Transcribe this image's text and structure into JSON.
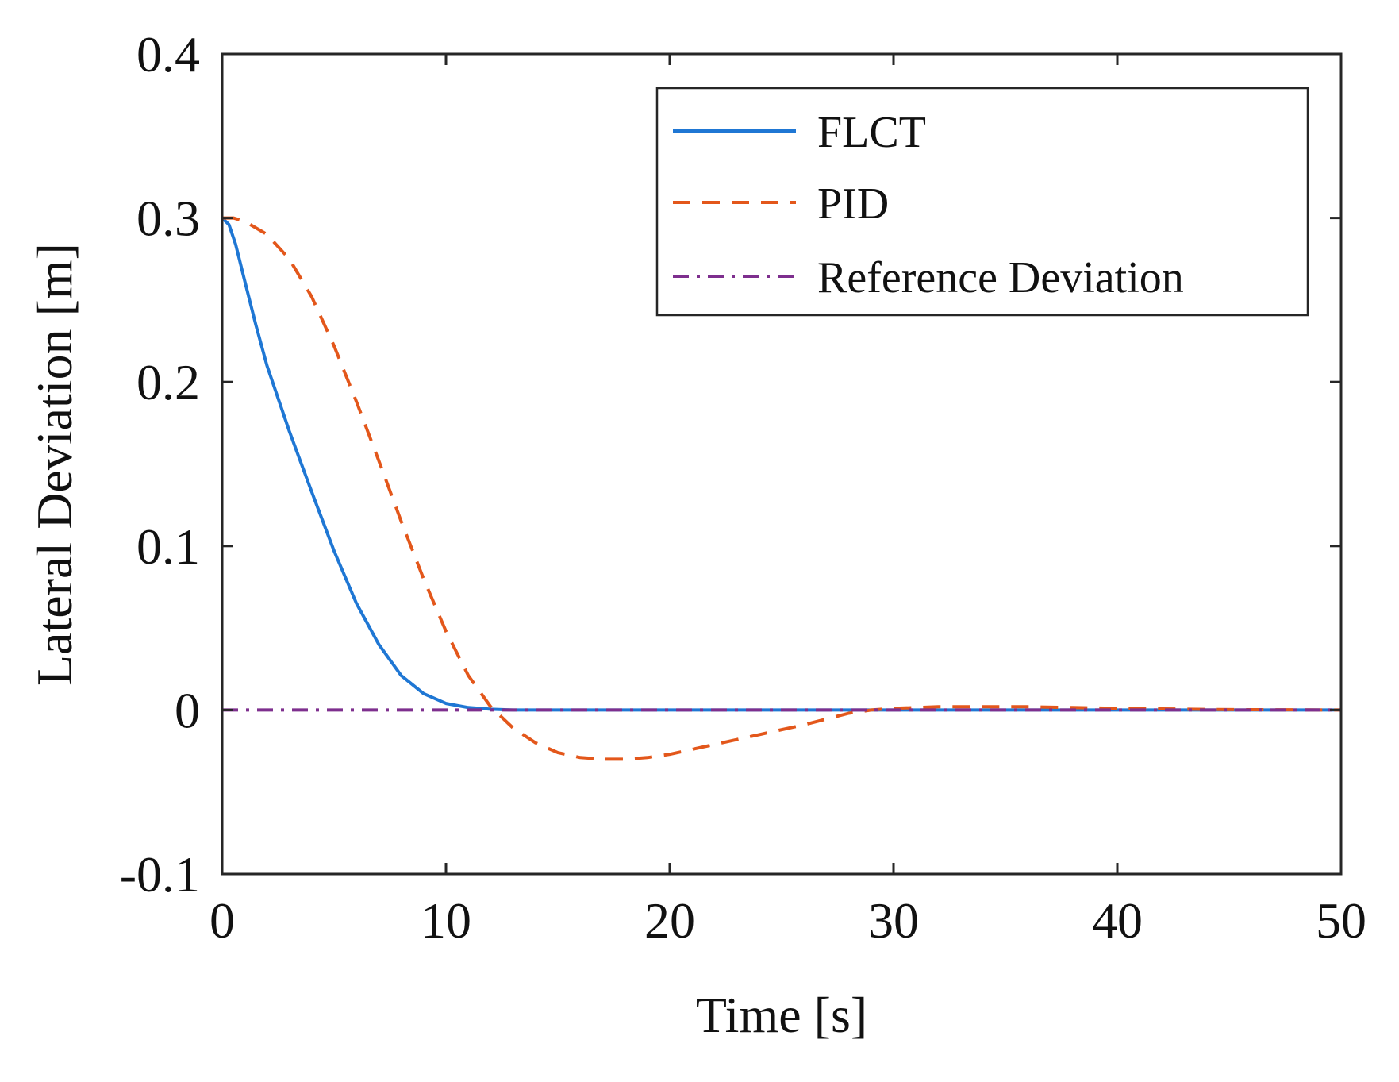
{
  "chart_data": {
    "type": "line",
    "title": "",
    "xlabel": "Time [s]",
    "ylabel": "Lateral Deviation [m]",
    "xlim": [
      0,
      50
    ],
    "ylim": [
      -0.1,
      0.4
    ],
    "xticks": [
      0,
      10,
      20,
      30,
      40,
      50
    ],
    "xtick_labels": [
      "0",
      "10",
      "20",
      "30",
      "40",
      "50"
    ],
    "yticks": [
      -0.1,
      0,
      0.1,
      0.2,
      0.3,
      0.4
    ],
    "ytick_labels": [
      "-0.1",
      "0",
      "0.1",
      "0.2",
      "0.3",
      "0.4"
    ],
    "grid": false,
    "legend_position": "top-right",
    "series": [
      {
        "name": "FLCT",
        "color": "#1f77d4",
        "style": "solid",
        "x": [
          0,
          0.3,
          0.6,
          1,
          1.5,
          2,
          3,
          4,
          5,
          6,
          7,
          8,
          9,
          10,
          11,
          12,
          13,
          14,
          15,
          20,
          30,
          40,
          50
        ],
        "y": [
          0.3,
          0.296,
          0.284,
          0.262,
          0.235,
          0.21,
          0.17,
          0.133,
          0.097,
          0.065,
          0.04,
          0.021,
          0.01,
          0.004,
          0.0015,
          0.0005,
          0.0,
          0.0,
          0.0,
          0.0,
          0.0,
          0.0,
          0.0
        ]
      },
      {
        "name": "PID",
        "color": "#e3571b",
        "style": "dashed",
        "x": [
          0,
          0.5,
          1,
          2,
          3,
          4,
          5,
          6,
          7,
          8,
          9,
          10,
          11,
          12,
          13,
          14,
          15,
          16,
          17,
          18,
          19,
          20,
          22,
          24,
          26,
          28,
          29,
          30,
          32,
          34,
          36,
          38,
          40,
          42,
          44,
          46,
          48,
          50
        ],
        "y": [
          0.3,
          0.3,
          0.298,
          0.29,
          0.275,
          0.252,
          0.222,
          0.188,
          0.152,
          0.115,
          0.08,
          0.048,
          0.021,
          0.002,
          -0.011,
          -0.02,
          -0.026,
          -0.029,
          -0.03,
          -0.03,
          -0.029,
          -0.027,
          -0.021,
          -0.015,
          -0.009,
          -0.002,
          0.0,
          0.001,
          0.002,
          0.002,
          0.002,
          0.0015,
          0.001,
          0.0007,
          0.0004,
          0.0002,
          0.0001,
          0.0
        ]
      },
      {
        "name": "Reference Deviation",
        "color": "#7e2f8e",
        "style": "dashdot",
        "x": [
          0,
          50
        ],
        "y": [
          0,
          0
        ]
      }
    ]
  }
}
